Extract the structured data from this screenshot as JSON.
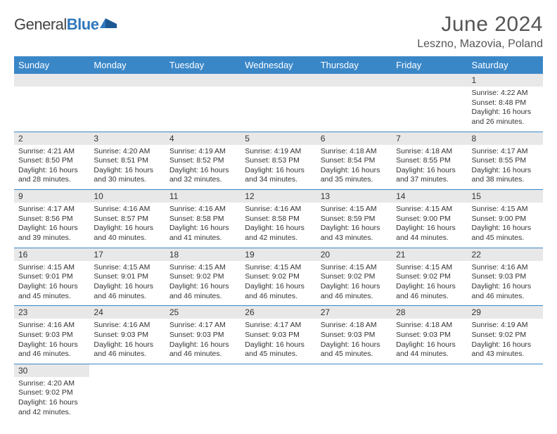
{
  "logo": {
    "general": "General",
    "blue": "Blue"
  },
  "title": "June 2024",
  "location": "Leszno, Mazovia, Poland",
  "colors": {
    "header_bg": "#3a87c8",
    "daynum_bg": "#e8e8e8",
    "border": "#3a87c8",
    "text": "#333",
    "title": "#555"
  },
  "daysOfWeek": [
    "Sunday",
    "Monday",
    "Tuesday",
    "Wednesday",
    "Thursday",
    "Friday",
    "Saturday"
  ],
  "weeks": [
    [
      null,
      null,
      null,
      null,
      null,
      null,
      {
        "n": "1",
        "sr": "Sunrise: 4:22 AM",
        "ss": "Sunset: 8:48 PM",
        "d1": "Daylight: 16 hours",
        "d2": "and 26 minutes."
      }
    ],
    [
      {
        "n": "2",
        "sr": "Sunrise: 4:21 AM",
        "ss": "Sunset: 8:50 PM",
        "d1": "Daylight: 16 hours",
        "d2": "and 28 minutes."
      },
      {
        "n": "3",
        "sr": "Sunrise: 4:20 AM",
        "ss": "Sunset: 8:51 PM",
        "d1": "Daylight: 16 hours",
        "d2": "and 30 minutes."
      },
      {
        "n": "4",
        "sr": "Sunrise: 4:19 AM",
        "ss": "Sunset: 8:52 PM",
        "d1": "Daylight: 16 hours",
        "d2": "and 32 minutes."
      },
      {
        "n": "5",
        "sr": "Sunrise: 4:19 AM",
        "ss": "Sunset: 8:53 PM",
        "d1": "Daylight: 16 hours",
        "d2": "and 34 minutes."
      },
      {
        "n": "6",
        "sr": "Sunrise: 4:18 AM",
        "ss": "Sunset: 8:54 PM",
        "d1": "Daylight: 16 hours",
        "d2": "and 35 minutes."
      },
      {
        "n": "7",
        "sr": "Sunrise: 4:18 AM",
        "ss": "Sunset: 8:55 PM",
        "d1": "Daylight: 16 hours",
        "d2": "and 37 minutes."
      },
      {
        "n": "8",
        "sr": "Sunrise: 4:17 AM",
        "ss": "Sunset: 8:55 PM",
        "d1": "Daylight: 16 hours",
        "d2": "and 38 minutes."
      }
    ],
    [
      {
        "n": "9",
        "sr": "Sunrise: 4:17 AM",
        "ss": "Sunset: 8:56 PM",
        "d1": "Daylight: 16 hours",
        "d2": "and 39 minutes."
      },
      {
        "n": "10",
        "sr": "Sunrise: 4:16 AM",
        "ss": "Sunset: 8:57 PM",
        "d1": "Daylight: 16 hours",
        "d2": "and 40 minutes."
      },
      {
        "n": "11",
        "sr": "Sunrise: 4:16 AM",
        "ss": "Sunset: 8:58 PM",
        "d1": "Daylight: 16 hours",
        "d2": "and 41 minutes."
      },
      {
        "n": "12",
        "sr": "Sunrise: 4:16 AM",
        "ss": "Sunset: 8:58 PM",
        "d1": "Daylight: 16 hours",
        "d2": "and 42 minutes."
      },
      {
        "n": "13",
        "sr": "Sunrise: 4:15 AM",
        "ss": "Sunset: 8:59 PM",
        "d1": "Daylight: 16 hours",
        "d2": "and 43 minutes."
      },
      {
        "n": "14",
        "sr": "Sunrise: 4:15 AM",
        "ss": "Sunset: 9:00 PM",
        "d1": "Daylight: 16 hours",
        "d2": "and 44 minutes."
      },
      {
        "n": "15",
        "sr": "Sunrise: 4:15 AM",
        "ss": "Sunset: 9:00 PM",
        "d1": "Daylight: 16 hours",
        "d2": "and 45 minutes."
      }
    ],
    [
      {
        "n": "16",
        "sr": "Sunrise: 4:15 AM",
        "ss": "Sunset: 9:01 PM",
        "d1": "Daylight: 16 hours",
        "d2": "and 45 minutes."
      },
      {
        "n": "17",
        "sr": "Sunrise: 4:15 AM",
        "ss": "Sunset: 9:01 PM",
        "d1": "Daylight: 16 hours",
        "d2": "and 46 minutes."
      },
      {
        "n": "18",
        "sr": "Sunrise: 4:15 AM",
        "ss": "Sunset: 9:02 PM",
        "d1": "Daylight: 16 hours",
        "d2": "and 46 minutes."
      },
      {
        "n": "19",
        "sr": "Sunrise: 4:15 AM",
        "ss": "Sunset: 9:02 PM",
        "d1": "Daylight: 16 hours",
        "d2": "and 46 minutes."
      },
      {
        "n": "20",
        "sr": "Sunrise: 4:15 AM",
        "ss": "Sunset: 9:02 PM",
        "d1": "Daylight: 16 hours",
        "d2": "and 46 minutes."
      },
      {
        "n": "21",
        "sr": "Sunrise: 4:15 AM",
        "ss": "Sunset: 9:02 PM",
        "d1": "Daylight: 16 hours",
        "d2": "and 46 minutes."
      },
      {
        "n": "22",
        "sr": "Sunrise: 4:16 AM",
        "ss": "Sunset: 9:03 PM",
        "d1": "Daylight: 16 hours",
        "d2": "and 46 minutes."
      }
    ],
    [
      {
        "n": "23",
        "sr": "Sunrise: 4:16 AM",
        "ss": "Sunset: 9:03 PM",
        "d1": "Daylight: 16 hours",
        "d2": "and 46 minutes."
      },
      {
        "n": "24",
        "sr": "Sunrise: 4:16 AM",
        "ss": "Sunset: 9:03 PM",
        "d1": "Daylight: 16 hours",
        "d2": "and 46 minutes."
      },
      {
        "n": "25",
        "sr": "Sunrise: 4:17 AM",
        "ss": "Sunset: 9:03 PM",
        "d1": "Daylight: 16 hours",
        "d2": "and 46 minutes."
      },
      {
        "n": "26",
        "sr": "Sunrise: 4:17 AM",
        "ss": "Sunset: 9:03 PM",
        "d1": "Daylight: 16 hours",
        "d2": "and 45 minutes."
      },
      {
        "n": "27",
        "sr": "Sunrise: 4:18 AM",
        "ss": "Sunset: 9:03 PM",
        "d1": "Daylight: 16 hours",
        "d2": "and 45 minutes."
      },
      {
        "n": "28",
        "sr": "Sunrise: 4:18 AM",
        "ss": "Sunset: 9:03 PM",
        "d1": "Daylight: 16 hours",
        "d2": "and 44 minutes."
      },
      {
        "n": "29",
        "sr": "Sunrise: 4:19 AM",
        "ss": "Sunset: 9:02 PM",
        "d1": "Daylight: 16 hours",
        "d2": "and 43 minutes."
      }
    ],
    [
      {
        "n": "30",
        "sr": "Sunrise: 4:20 AM",
        "ss": "Sunset: 9:02 PM",
        "d1": "Daylight: 16 hours",
        "d2": "and 42 minutes."
      },
      null,
      null,
      null,
      null,
      null,
      null
    ]
  ]
}
